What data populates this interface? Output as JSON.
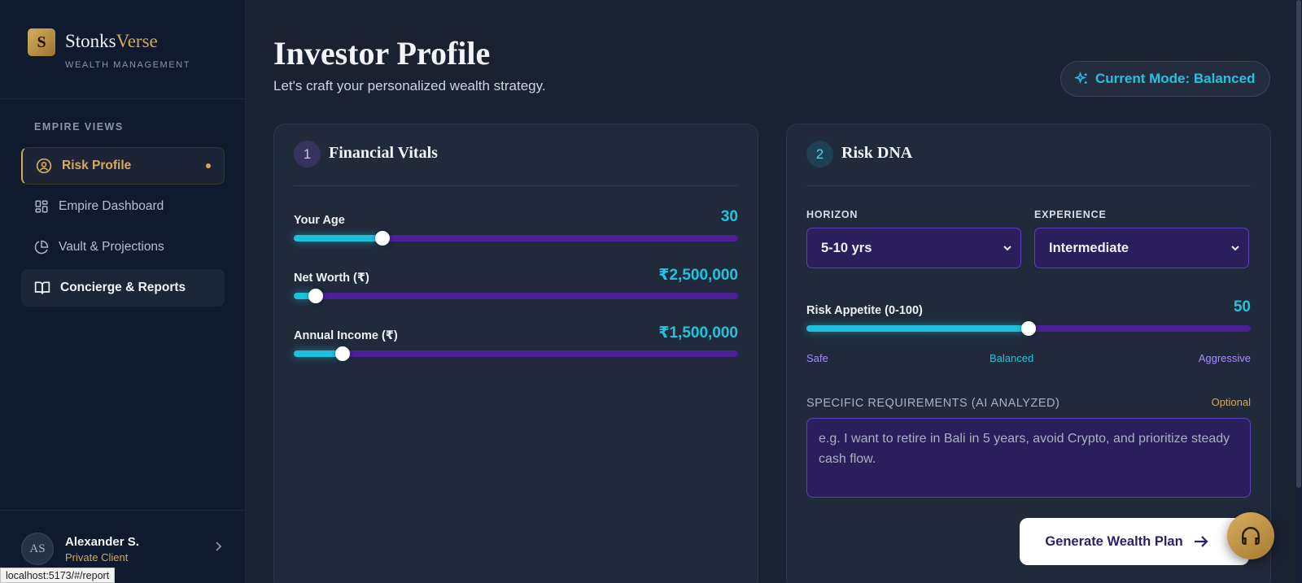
{
  "brand": {
    "logo_letter": "S",
    "name_part1": "Stonks",
    "name_part2": "Verse",
    "subtitle": "WEALTH MANAGEMENT"
  },
  "nav": {
    "heading": "EMPIRE VIEWS",
    "items": [
      {
        "label": "Risk Profile",
        "icon": "user-circle-icon",
        "state": "active"
      },
      {
        "label": "Empire Dashboard",
        "icon": "grid-icon",
        "state": "normal"
      },
      {
        "label": "Vault & Projections",
        "icon": "pie-chart-icon",
        "state": "normal"
      },
      {
        "label": "Concierge & Reports",
        "icon": "book-open-icon",
        "state": "hover"
      }
    ]
  },
  "user": {
    "initials": "AS",
    "name": "Alexander S.",
    "role": "Private Client"
  },
  "status_url": "localhost:5173/#/report",
  "header": {
    "title": "Investor Profile",
    "subtitle": "Let's craft your personalized wealth strategy.",
    "mode_label": "Current Mode: Balanced"
  },
  "financial": {
    "step": "1",
    "title": "Financial Vitals",
    "fields": [
      {
        "label": "Your Age",
        "value": "30",
        "fill_fraction": 0.2
      },
      {
        "label": "Net Worth (₹)",
        "value": "₹2,500,000",
        "fill_fraction": 0.05
      },
      {
        "label": "Annual Income (₹)",
        "value": "₹1,500,000",
        "fill_fraction": 0.11
      }
    ]
  },
  "risk": {
    "step": "2",
    "title": "Risk DNA",
    "horizon_label": "HORIZON",
    "horizon_value": "5-10 yrs",
    "experience_label": "EXPERIENCE",
    "experience_value": "Intermediate",
    "appetite_label": "Risk Appetite (0-100)",
    "appetite_value": "50",
    "appetite_fraction": 0.5,
    "scale": {
      "low": "Safe",
      "mid": "Balanced",
      "high": "Aggressive"
    },
    "requirements_label": "SPECIFIC REQUIREMENTS (AI ANALYZED)",
    "optional_label": "Optional",
    "requirements_placeholder": "e.g. I want to retire in Bali in 5 years, avoid Crypto, and prioritize steady cash flow."
  },
  "actions": {
    "generate_label": "Generate Wealth Plan",
    "support_icon": "headphones-icon"
  },
  "colors": {
    "accent_gold": "#d4a85a",
    "accent_cyan": "#22c3dd",
    "track_purple": "#4b1f98",
    "bg": "#1a2131"
  }
}
